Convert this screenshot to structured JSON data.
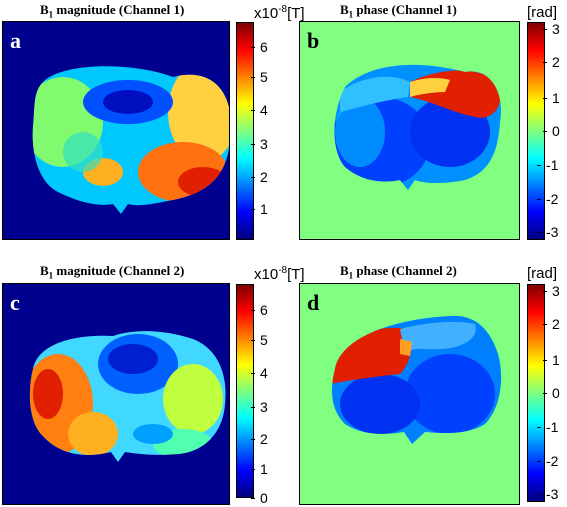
{
  "panels": {
    "a": {
      "label": "a",
      "title_main": "B",
      "title_sub": "1",
      "title_rest": " magnitude (Channel 1)"
    },
    "b": {
      "label": "b",
      "title_main": "B",
      "title_sub": "1",
      "title_rest": " phase (Channel 1)"
    },
    "c": {
      "label": "c",
      "title_main": "B",
      "title_sub": "1",
      "title_rest": " magnitude (Channel 2)"
    },
    "d": {
      "label": "d",
      "title_main": "B",
      "title_sub": "1",
      "title_rest": " phase (Channel 2)"
    }
  },
  "colorbars": {
    "mag1": {
      "unit_prefix": "x10",
      "unit_exp": "-8",
      "unit_suffix": "[T]",
      "ticks": [
        "6",
        "5",
        "4",
        "3",
        "2",
        "1"
      ]
    },
    "phase1": {
      "unit": "[rad]",
      "ticks": [
        "3",
        "2",
        "1",
        "0",
        "-1",
        "-2",
        "-3"
      ]
    },
    "mag2": {
      "unit_prefix": "x10",
      "unit_exp": "-8",
      "unit_suffix": "[T]",
      "ticks": [
        "6",
        "5",
        "4",
        "3",
        "2",
        "1",
        "0"
      ]
    },
    "phase2": {
      "unit": "[rad]",
      "ticks": [
        "3",
        "2",
        "1",
        "0",
        "-1",
        "-2",
        "-3"
      ]
    }
  },
  "colors": {
    "magnitude_background": "#00008f",
    "phase_background": "#80ff80",
    "jet_stops": [
      "#00007f",
      "#0000ff",
      "#007fff",
      "#00ffff",
      "#7fff7f",
      "#ffff00",
      "#ff7f00",
      "#ff0000",
      "#7f0000"
    ]
  }
}
